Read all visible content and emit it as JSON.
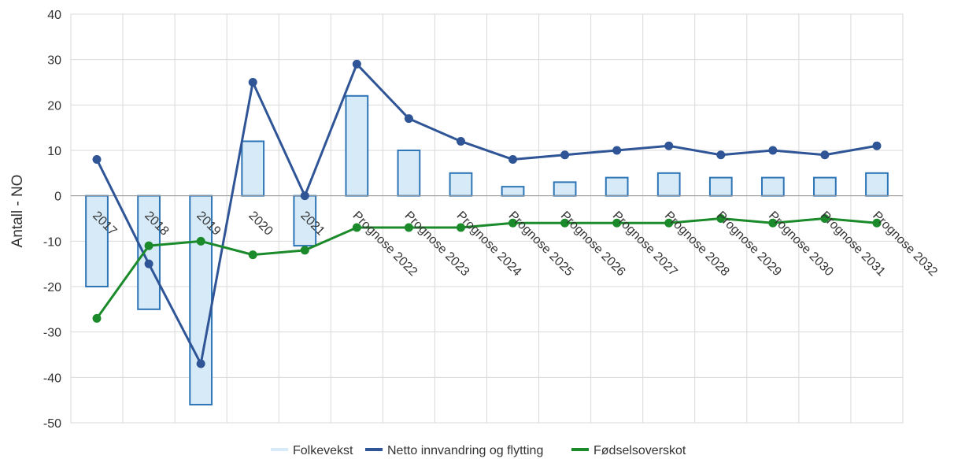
{
  "chart_data": {
    "type": "bar",
    "categories": [
      "2017",
      "2018",
      "2019",
      "2020",
      "2021",
      "Prognose 2022",
      "Prognose 2023",
      "Prognose 2024",
      "Prognose 2025",
      "Prognose 2026",
      "Prognose 2027",
      "Prognose 2028",
      "Prognose 2029",
      "Prognose 2030",
      "Prognose 2031",
      "Prognose 2032"
    ],
    "series": [
      {
        "name": "Folkevekst",
        "type": "bar",
        "color": "#d6eaf8",
        "stroke": "#2e75b6",
        "values": [
          -20,
          -25,
          -46,
          12,
          -11,
          22,
          10,
          5,
          2,
          3,
          4,
          5,
          4,
          4,
          4,
          5
        ]
      },
      {
        "name": "Netto innvandring og flytting",
        "type": "line",
        "color": "#2f5597",
        "values": [
          8,
          -15,
          -37,
          25,
          0,
          29,
          17,
          12,
          8,
          9,
          10,
          11,
          9,
          10,
          9,
          11
        ]
      },
      {
        "name": "Fødselsoverskot",
        "type": "line",
        "color": "#1a8a2a",
        "values": [
          -27,
          -11,
          -10,
          -13,
          -12,
          -7,
          -7,
          -7,
          -6,
          -6,
          -6,
          -6,
          -5,
          -6,
          -5,
          -6
        ]
      }
    ],
    "ylabel": "Antall - NO",
    "ylim": [
      -50,
      40
    ],
    "yticks": [
      -50,
      -40,
      -30,
      -20,
      -10,
      0,
      10,
      20,
      30,
      40
    ],
    "grid": true,
    "legend": "bottom"
  }
}
